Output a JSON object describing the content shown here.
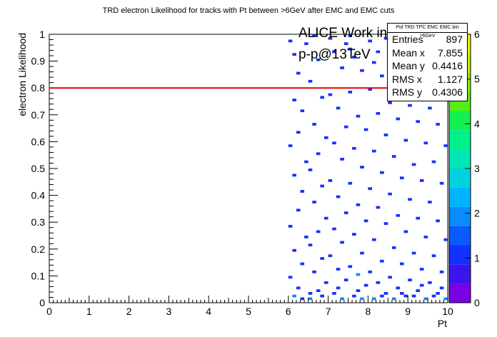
{
  "title": "TRD electron Likelihood for tracks with Pt between >6GeV after EMC and EMC cuts",
  "overlay": {
    "line1": "ALICE Work in Progress",
    "line2": "p-p@13TeV"
  },
  "stats": {
    "name": "Pid TRD TPC EMC EMC bin >6GeV",
    "rows": [
      {
        "label": "Entries",
        "value": "897"
      },
      {
        "label": "Mean x",
        "value": "7.855"
      },
      {
        "label": "Mean y",
        "value": "0.4416"
      },
      {
        "label": "RMS x",
        "value": "1.127"
      },
      {
        "label": "RMS y",
        "value": "0.4306"
      }
    ]
  },
  "chart_data": {
    "type": "heatmap",
    "title": "TRD electron Likelihood for tracks with Pt between >6GeV after EMC and EMC cuts",
    "xlabel": "Pt",
    "ylabel": "electron Likelihood",
    "xlim": [
      0,
      10
    ],
    "ylim": [
      0,
      1
    ],
    "x_ticks": [
      "0",
      "1",
      "2",
      "3",
      "4",
      "5",
      "6",
      "7",
      "8",
      "9",
      "10"
    ],
    "y_ticks": [
      "0",
      "0.1",
      "0.2",
      "0.3",
      "0.4",
      "0.5",
      "0.6",
      "0.7",
      "0.8",
      "0.9",
      "1"
    ],
    "z_ticks": [
      "0",
      "1",
      "2",
      "3",
      "4",
      "5",
      "6"
    ],
    "zlim": [
      0,
      6
    ],
    "cut_line": {
      "y": 0.8,
      "color": "#e00000"
    },
    "bin_width": {
      "x": 0.1,
      "y": 0.01
    },
    "occupied_x_range": [
      6,
      10
    ],
    "cells": [
      [
        6.0,
        0.97,
        1
      ],
      [
        6.1,
        0.92,
        1
      ],
      [
        6.2,
        0.85,
        1
      ],
      [
        6.1,
        0.75,
        1
      ],
      [
        6.3,
        0.71,
        1
      ],
      [
        6.2,
        0.63,
        1
      ],
      [
        6.0,
        0.58,
        1
      ],
      [
        6.4,
        0.52,
        1
      ],
      [
        6.1,
        0.47,
        1
      ],
      [
        6.3,
        0.41,
        1
      ],
      [
        6.2,
        0.34,
        1
      ],
      [
        6.0,
        0.28,
        1
      ],
      [
        6.4,
        0.24,
        1
      ],
      [
        6.1,
        0.19,
        1
      ],
      [
        6.3,
        0.14,
        1
      ],
      [
        6.0,
        0.09,
        1
      ],
      [
        6.2,
        0.05,
        1
      ],
      [
        6.1,
        0.02,
        2
      ],
      [
        6.3,
        0.01,
        1
      ],
      [
        6.5,
        0.03,
        1
      ],
      [
        6.6,
        0.99,
        1
      ],
      [
        6.7,
        0.9,
        1
      ],
      [
        6.5,
        0.82,
        1
      ],
      [
        6.8,
        0.76,
        1
      ],
      [
        6.6,
        0.66,
        1
      ],
      [
        6.9,
        0.61,
        1
      ],
      [
        6.7,
        0.55,
        1
      ],
      [
        6.5,
        0.49,
        1
      ],
      [
        6.8,
        0.43,
        1
      ],
      [
        6.6,
        0.37,
        1
      ],
      [
        6.9,
        0.31,
        1
      ],
      [
        6.7,
        0.26,
        1
      ],
      [
        6.5,
        0.21,
        1
      ],
      [
        6.8,
        0.16,
        1
      ],
      [
        6.6,
        0.11,
        1
      ],
      [
        6.9,
        0.07,
        1
      ],
      [
        6.7,
        0.04,
        1
      ],
      [
        6.5,
        0.01,
        2
      ],
      [
        6.8,
        0.02,
        1
      ],
      [
        6.4,
        0.96,
        1
      ],
      [
        7.0,
        0.98,
        1
      ],
      [
        7.1,
        0.93,
        1
      ],
      [
        7.3,
        0.87,
        1
      ],
      [
        7.0,
        0.77,
        1
      ],
      [
        7.2,
        0.72,
        1
      ],
      [
        7.4,
        0.65,
        1
      ],
      [
        7.1,
        0.59,
        1
      ],
      [
        7.3,
        0.53,
        1
      ],
      [
        7.0,
        0.45,
        1
      ],
      [
        7.2,
        0.39,
        1
      ],
      [
        7.4,
        0.33,
        1
      ],
      [
        7.1,
        0.27,
        1
      ],
      [
        7.3,
        0.22,
        1
      ],
      [
        7.0,
        0.17,
        1
      ],
      [
        7.2,
        0.12,
        1
      ],
      [
        7.4,
        0.08,
        1
      ],
      [
        7.1,
        0.03,
        1
      ],
      [
        7.3,
        0.01,
        2
      ],
      [
        7.2,
        0.05,
        1
      ],
      [
        7.4,
        0.96,
        1
      ],
      [
        7.5,
        0.99,
        1
      ],
      [
        7.6,
        0.91,
        1
      ],
      [
        7.8,
        0.86,
        1
      ],
      [
        7.5,
        0.78,
        1
      ],
      [
        7.7,
        0.69,
        1
      ],
      [
        7.9,
        0.64,
        1
      ],
      [
        7.6,
        0.57,
        1
      ],
      [
        7.8,
        0.5,
        1
      ],
      [
        7.5,
        0.44,
        1
      ],
      [
        7.7,
        0.36,
        1
      ],
      [
        7.9,
        0.3,
        1
      ],
      [
        7.6,
        0.25,
        1
      ],
      [
        7.8,
        0.18,
        1
      ],
      [
        7.5,
        0.13,
        1
      ],
      [
        7.7,
        0.1,
        2
      ],
      [
        7.9,
        0.06,
        1
      ],
      [
        7.6,
        0.02,
        1
      ],
      [
        7.8,
        0.01,
        2
      ],
      [
        7.7,
        0.04,
        1
      ],
      [
        7.5,
        0.94,
        1
      ],
      [
        8.0,
        0.97,
        1
      ],
      [
        8.1,
        0.89,
        1
      ],
      [
        8.3,
        0.84,
        1
      ],
      [
        8.0,
        0.79,
        1
      ],
      [
        8.2,
        0.7,
        1
      ],
      [
        8.4,
        0.62,
        1
      ],
      [
        8.1,
        0.56,
        1
      ],
      [
        8.3,
        0.48,
        1
      ],
      [
        8.0,
        0.42,
        1
      ],
      [
        8.2,
        0.35,
        1
      ],
      [
        8.4,
        0.29,
        1
      ],
      [
        8.1,
        0.23,
        1
      ],
      [
        8.3,
        0.15,
        1
      ],
      [
        8.0,
        0.11,
        1
      ],
      [
        8.2,
        0.07,
        1
      ],
      [
        8.4,
        0.03,
        1
      ],
      [
        8.1,
        0.01,
        2
      ],
      [
        8.3,
        0.02,
        1
      ],
      [
        8.2,
        0.93,
        1
      ],
      [
        8.4,
        0.98,
        1
      ],
      [
        8.5,
        0.96,
        1
      ],
      [
        8.6,
        0.88,
        1
      ],
      [
        8.8,
        0.83,
        1
      ],
      [
        8.5,
        0.74,
        1
      ],
      [
        8.7,
        0.68,
        1
      ],
      [
        8.9,
        0.6,
        1
      ],
      [
        8.6,
        0.54,
        1
      ],
      [
        8.8,
        0.46,
        1
      ],
      [
        8.5,
        0.4,
        1
      ],
      [
        8.7,
        0.32,
        1
      ],
      [
        8.9,
        0.26,
        1
      ],
      [
        8.6,
        0.2,
        1
      ],
      [
        8.8,
        0.14,
        1
      ],
      [
        8.5,
        0.09,
        1
      ],
      [
        8.7,
        0.05,
        1
      ],
      [
        8.9,
        0.02,
        1
      ],
      [
        8.6,
        0.01,
        2
      ],
      [
        8.8,
        0.03,
        1
      ],
      [
        8.7,
        0.92,
        1
      ],
      [
        8.9,
        0.99,
        1
      ],
      [
        9.0,
        0.95,
        1
      ],
      [
        9.1,
        0.87,
        1
      ],
      [
        9.3,
        0.81,
        1
      ],
      [
        9.0,
        0.73,
        1
      ],
      [
        9.2,
        0.67,
        1
      ],
      [
        9.4,
        0.59,
        1
      ],
      [
        9.1,
        0.51,
        1
      ],
      [
        9.3,
        0.45,
        1
      ],
      [
        9.0,
        0.38,
        1
      ],
      [
        9.2,
        0.31,
        1
      ],
      [
        9.4,
        0.24,
        1
      ],
      [
        9.1,
        0.18,
        1
      ],
      [
        9.3,
        0.12,
        1
      ],
      [
        9.0,
        0.08,
        1
      ],
      [
        9.2,
        0.04,
        1
      ],
      [
        9.4,
        0.01,
        2
      ],
      [
        9.1,
        0.02,
        1
      ],
      [
        9.3,
        0.06,
        1
      ],
      [
        9.2,
        0.94,
        1
      ],
      [
        9.4,
        0.9,
        1
      ],
      [
        9.5,
        0.96,
        1
      ],
      [
        9.6,
        0.86,
        1
      ],
      [
        9.8,
        0.79,
        1
      ],
      [
        9.5,
        0.72,
        1
      ],
      [
        9.7,
        0.66,
        1
      ],
      [
        9.9,
        0.58,
        1
      ],
      [
        9.6,
        0.52,
        1
      ],
      [
        9.8,
        0.44,
        1
      ],
      [
        9.5,
        0.37,
        1
      ],
      [
        9.7,
        0.3,
        1
      ],
      [
        9.9,
        0.23,
        1
      ],
      [
        9.6,
        0.17,
        1
      ],
      [
        9.8,
        0.11,
        1
      ],
      [
        9.5,
        0.07,
        1
      ],
      [
        9.7,
        0.03,
        1
      ],
      [
        9.9,
        0.01,
        2
      ],
      [
        9.6,
        0.02,
        1
      ],
      [
        9.8,
        0.05,
        1
      ],
      [
        9.7,
        0.91,
        1
      ],
      [
        9.9,
        0.97,
        1
      ]
    ]
  }
}
